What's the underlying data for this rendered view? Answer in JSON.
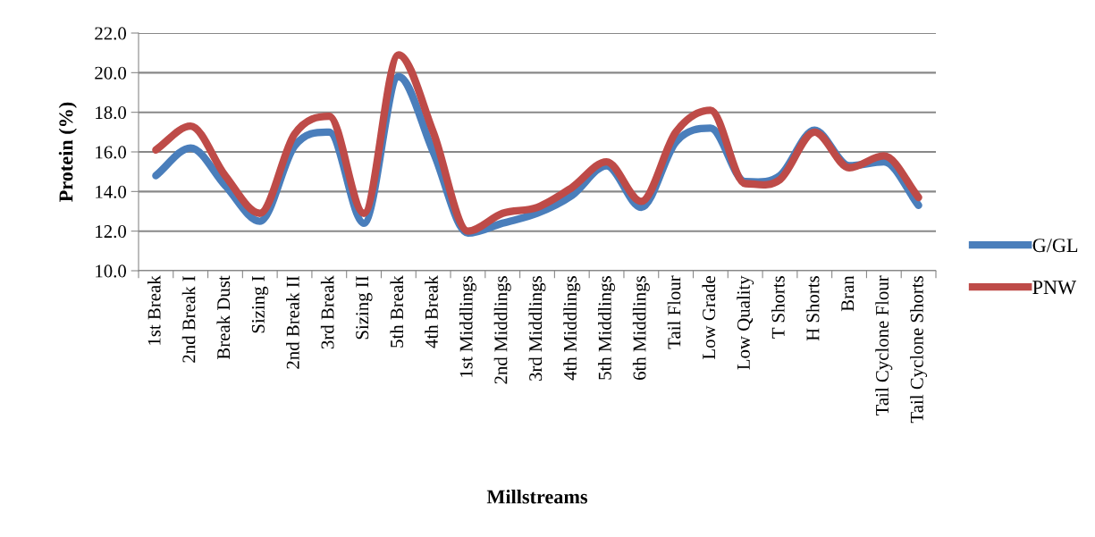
{
  "chart_data": {
    "type": "line",
    "xlabel": "Millstreams",
    "ylabel": "Protein (%)",
    "categories": [
      "1st Break",
      "2nd Break I",
      "Break Dust",
      "Sizing I",
      "2nd Break II",
      "3rd Break",
      "Sizing II",
      "5th Break",
      "4th Break",
      "1st Middlings",
      "2nd Middlings",
      "3rd Middlings",
      "4th Middlings",
      "5th Middlings",
      "6th Middlings",
      "Tail Flour",
      "Low Grade",
      "Low Quality",
      "T Shorts",
      "H Shorts",
      "Bran",
      "Tail Cyclone Flour",
      "Tail Cyclone Shorts"
    ],
    "series": [
      {
        "name": "G/GL",
        "color": "#4a7ebb",
        "values": [
          14.8,
          16.2,
          14.3,
          12.5,
          16.3,
          17.0,
          12.4,
          19.8,
          16.0,
          11.9,
          12.4,
          12.9,
          13.8,
          15.3,
          13.2,
          16.5,
          17.2,
          14.5,
          14.8,
          17.1,
          15.3,
          15.5,
          13.3
        ]
      },
      {
        "name": "PNW",
        "color": "#be4b48",
        "values": [
          16.1,
          17.3,
          14.8,
          12.9,
          16.9,
          17.8,
          12.9,
          20.9,
          17.0,
          12.0,
          12.9,
          13.2,
          14.2,
          15.5,
          13.5,
          17.0,
          18.1,
          14.4,
          14.6,
          17.0,
          15.2,
          15.8,
          13.7
        ]
      }
    ],
    "ylim": [
      10,
      22
    ],
    "yticks": [
      {
        "value": 10,
        "label": "10.0"
      },
      {
        "value": 12,
        "label": "12.0"
      },
      {
        "value": 14,
        "label": "14.0"
      },
      {
        "value": 16,
        "label": "16.0"
      },
      {
        "value": 18,
        "label": "18.0"
      },
      {
        "value": 20,
        "label": "20.0"
      },
      {
        "value": 22,
        "label": "22.0"
      }
    ],
    "grid": "y",
    "legend": "right",
    "marker": "none",
    "line_style": "solid"
  }
}
